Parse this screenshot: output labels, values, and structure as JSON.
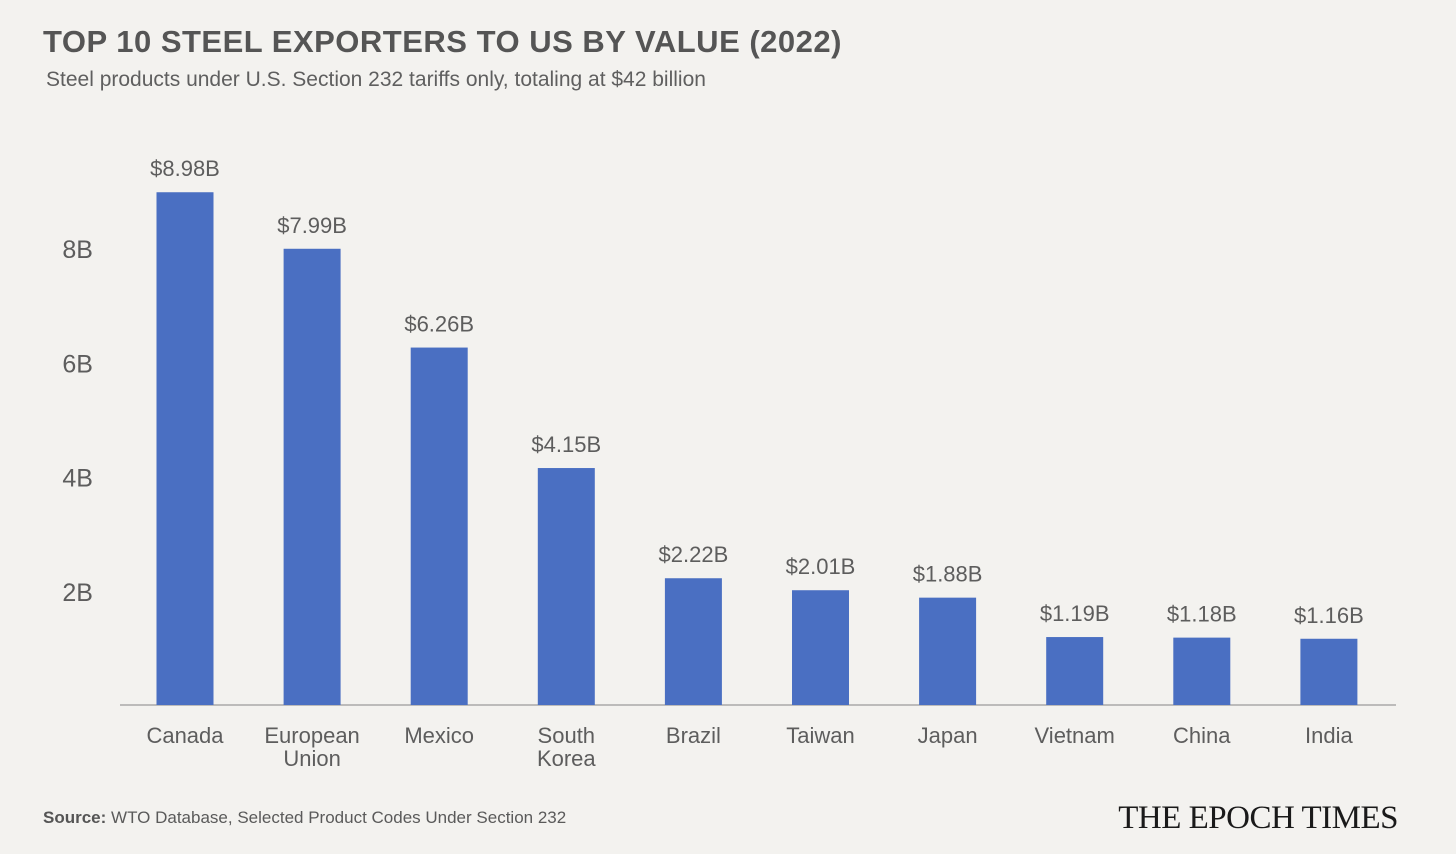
{
  "header": {
    "title": "TOP 10 STEEL EXPORTERS TO US BY VALUE (2022)",
    "subtitle": "Steel products under U.S. Section 232 tariffs only, totaling at $42 billion"
  },
  "footer": {
    "source_label": "Source:",
    "source_text": "WTO Database, Selected Product Codes Under Section 232",
    "logo_text": "THE EPOCH TIMES"
  },
  "colors": {
    "bar": "#4a6fc2",
    "background": "#f3f2ef",
    "axis": "#9a9a9a",
    "text": "#5d5d5d"
  },
  "chart_data": {
    "type": "bar",
    "title": "TOP 10 STEEL EXPORTERS TO US BY VALUE (2022)",
    "subtitle": "Steel products under U.S. Section 232 tariffs only, totaling at $42 billion",
    "categories": [
      [
        "Canada"
      ],
      [
        "European",
        "Union"
      ],
      [
        "Mexico"
      ],
      [
        "South",
        "Korea"
      ],
      [
        "Brazil"
      ],
      [
        "Taiwan"
      ],
      [
        "Japan"
      ],
      [
        "Vietnam"
      ],
      [
        "China"
      ],
      [
        "India"
      ]
    ],
    "values": [
      8.98,
      7.99,
      6.26,
      4.15,
      2.22,
      2.01,
      1.88,
      1.19,
      1.18,
      1.16
    ],
    "data_labels": [
      "$8.98B",
      "$7.99B",
      "$6.26B",
      "$4.15B",
      "$2.22B",
      "$2.01B",
      "$1.88B",
      "$1.19B",
      "$1.18B",
      "$1.16B"
    ],
    "yticks": [
      2,
      4,
      6,
      8
    ],
    "ytick_labels": [
      "2B",
      "4B",
      "6B",
      "8B"
    ],
    "ylim": [
      0,
      9.3
    ],
    "grid": false,
    "legend": "none",
    "xlabel": "",
    "ylabel": ""
  }
}
